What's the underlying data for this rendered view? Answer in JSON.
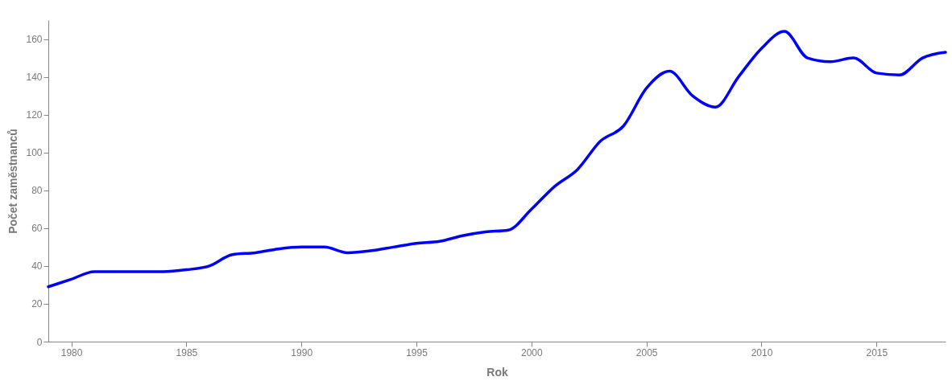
{
  "chart_data": {
    "type": "line",
    "xlabel": "Rok",
    "ylabel": "Počet zaměstnanců",
    "x": [
      1979,
      1980,
      1981,
      1982,
      1983,
      1984,
      1985,
      1986,
      1987,
      1988,
      1989,
      1990,
      1991,
      1992,
      1993,
      1994,
      1995,
      1996,
      1997,
      1998,
      1999,
      2000,
      2001,
      2002,
      2003,
      2004,
      2005,
      2006,
      2007,
      2008,
      2009,
      2010,
      2011,
      2012,
      2013,
      2014,
      2015,
      2016,
      2017,
      2018
    ],
    "values": [
      29,
      33,
      37,
      37,
      37,
      37,
      38,
      40,
      46,
      47,
      49,
      50,
      50,
      47,
      48,
      50,
      52,
      53,
      56,
      58,
      59,
      70,
      82,
      91,
      106,
      114,
      134,
      143,
      130,
      124,
      140,
      155,
      164,
      150,
      148,
      150,
      142,
      141,
      150,
      153
    ],
    "color": "#0000ff",
    "xlim": [
      1979,
      2018
    ],
    "ylim": [
      0,
      170
    ],
    "xticks": [
      1980,
      1985,
      1990,
      1995,
      2000,
      2005,
      2010,
      2015
    ],
    "yticks": [
      0,
      20,
      40,
      60,
      80,
      100,
      120,
      140,
      160
    ]
  }
}
